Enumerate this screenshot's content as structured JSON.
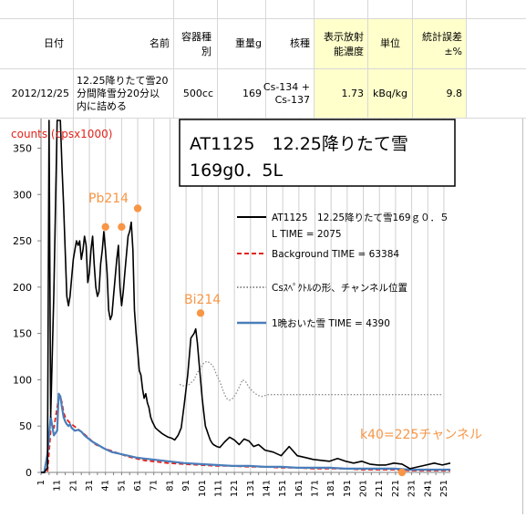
{
  "table": {
    "headers": [
      "日付",
      "名前",
      "容器種別",
      "重量g",
      "核種",
      "表示放射能濃度",
      "単位",
      "統計誤差±%"
    ],
    "row": {
      "date": "2012/12/25",
      "name": "12.25降りたて雪20分間降雪分20分以内に詰める",
      "container": "500cc",
      "weight": "169",
      "nuclide": "Cs-134 + Cs-137",
      "concentration": "1.73",
      "unit": "kBq/kg",
      "error": "9.8"
    },
    "highlight_color": "#ffffcc"
  },
  "chart_data": {
    "type": "line",
    "ylabel": "counts (cpsx1000)",
    "ylim": [
      0,
      380
    ],
    "yticks": [
      0,
      50,
      100,
      150,
      200,
      250,
      300,
      350
    ],
    "xlim": [
      1,
      255
    ],
    "xticks": [
      1,
      11,
      21,
      31,
      41,
      51,
      61,
      71,
      81,
      91,
      101,
      111,
      121,
      131,
      141,
      151,
      161,
      171,
      181,
      191,
      201,
      211,
      221,
      231,
      241,
      251
    ],
    "title_box": [
      "AT1125　12.25降りたて雪",
      "169g0．5L"
    ],
    "series": [
      {
        "name": "AT1125　12.25降りたて雪169ｇ０．５L TIME = 2075",
        "color": "#000000",
        "style": "solid",
        "x": [
          1,
          3,
          5,
          6,
          7,
          9,
          11,
          12,
          13,
          14,
          15,
          16,
          17,
          18,
          19,
          20,
          21,
          22,
          23,
          24,
          25,
          26,
          27,
          28,
          29,
          30,
          31,
          32,
          33,
          34,
          35,
          36,
          37,
          38,
          39,
          40,
          41,
          42,
          43,
          44,
          45,
          46,
          47,
          48,
          49,
          50,
          51,
          52,
          53,
          54,
          55,
          56,
          57,
          58,
          59,
          60,
          61,
          62,
          63,
          64,
          65,
          66,
          67,
          68,
          69,
          70,
          72,
          74,
          76,
          78,
          80,
          82,
          84,
          86,
          88,
          90,
          92,
          94,
          96,
          97,
          98,
          99,
          100,
          101,
          102,
          103,
          104,
          105,
          106,
          107,
          108,
          110,
          112,
          115,
          118,
          121,
          124,
          127,
          130,
          133,
          136,
          140,
          145,
          150,
          155,
          160,
          165,
          170,
          175,
          180,
          185,
          190,
          195,
          200,
          205,
          210,
          215,
          220,
          225,
          230,
          235,
          240,
          245,
          250,
          255
        ],
        "values": [
          0,
          0,
          5,
          380,
          60,
          195,
          380,
          380,
          380,
          330,
          290,
          240,
          190,
          180,
          190,
          210,
          230,
          240,
          250,
          245,
          250,
          230,
          240,
          255,
          245,
          205,
          215,
          240,
          255,
          225,
          200,
          190,
          195,
          225,
          240,
          260,
          240,
          215,
          175,
          165,
          170,
          190,
          210,
          230,
          245,
          200,
          180,
          195,
          215,
          235,
          255,
          260,
          270,
          240,
          175,
          150,
          130,
          110,
          105,
          90,
          80,
          85,
          75,
          70,
          60,
          55,
          48,
          45,
          42,
          40,
          38,
          37,
          35,
          40,
          48,
          75,
          105,
          145,
          150,
          155,
          140,
          120,
          100,
          80,
          65,
          50,
          45,
          40,
          35,
          32,
          30,
          28,
          27,
          33,
          38,
          35,
          30,
          36,
          34,
          28,
          30,
          24,
          22,
          18,
          28,
          18,
          16,
          14,
          13,
          12,
          15,
          12,
          10,
          12,
          9,
          8,
          8,
          10,
          9,
          4,
          6,
          8,
          10,
          8,
          10
        ]
      },
      {
        "name": "Background  TIME = 63384",
        "color": "#e2231a",
        "style": "dashed",
        "x": [
          1,
          3,
          5,
          7,
          9,
          11,
          12,
          13,
          14,
          15,
          16,
          18,
          20,
          23,
          26,
          30,
          35,
          40,
          45,
          50,
          55,
          60,
          65,
          70,
          80,
          90,
          100,
          110,
          120,
          130,
          140,
          150,
          160,
          170,
          180,
          190,
          200,
          210,
          220,
          230,
          240,
          250,
          255
        ],
        "values": [
          0,
          0,
          0,
          45,
          48,
          70,
          80,
          82,
          75,
          65,
          60,
          55,
          52,
          48,
          44,
          38,
          30,
          26,
          23,
          20,
          17,
          15,
          13,
          12,
          10,
          9,
          8,
          7,
          7,
          6,
          6,
          5,
          5,
          4,
          4,
          4,
          3,
          3,
          3,
          2,
          2,
          2,
          2
        ]
      },
      {
        "name": "Csｽﾍﾟｸﾄﾙの形、チャンネル位置",
        "color": "#8c8c8c",
        "style": "dotted",
        "x": [
          87,
          90,
          93,
          96,
          98,
          100,
          102,
          104,
          106,
          108,
          110,
          112,
          114,
          116,
          118,
          120,
          122,
          124,
          126,
          128,
          130,
          132,
          134,
          136,
          138,
          140,
          142,
          145,
          150,
          160,
          170,
          180,
          190,
          200,
          210,
          220,
          230,
          240,
          250
        ],
        "values": [
          95,
          93,
          95,
          100,
          108,
          112,
          118,
          120,
          118,
          114,
          105,
          98,
          88,
          80,
          78,
          80,
          85,
          92,
          100,
          98,
          92,
          88,
          85,
          83,
          82,
          83,
          84,
          84,
          84,
          84,
          84,
          84,
          84,
          84,
          84,
          84,
          84,
          84,
          84
        ]
      },
      {
        "name": "1晩おいた雪 TIME = 4390",
        "color": "#4a7ebb",
        "style": "solid",
        "x": [
          1,
          3,
          5,
          7,
          9,
          11,
          12,
          13,
          14,
          15,
          16,
          17,
          18,
          19,
          20,
          22,
          24,
          26,
          28,
          30,
          33,
          36,
          40,
          45,
          50,
          55,
          60,
          65,
          70,
          75,
          80,
          90,
          100,
          110,
          120,
          130,
          140,
          150,
          160,
          170,
          180,
          190,
          200,
          210,
          220,
          230,
          240,
          250,
          255
        ],
        "values": [
          0,
          0,
          20,
          60,
          40,
          45,
          85,
          82,
          70,
          60,
          55,
          52,
          50,
          52,
          48,
          45,
          46,
          44,
          40,
          37,
          33,
          30,
          26,
          22,
          20,
          18,
          16,
          15,
          14,
          13,
          12,
          10,
          9,
          8,
          7,
          7,
          6,
          6,
          5,
          5,
          5,
          4,
          4,
          4,
          4,
          3,
          3,
          3,
          3
        ]
      }
    ],
    "annotations": [
      {
        "text": "Pb214",
        "color": "#f79646"
      },
      {
        "text": "Bi214",
        "color": "#f79646"
      },
      {
        "text": "k40=225チャンネル",
        "color": "#f79646"
      }
    ],
    "markers": [
      {
        "x": 41,
        "y": 265
      },
      {
        "x": 51,
        "y": 265
      },
      {
        "x": 61,
        "y": 285
      },
      {
        "x": 100,
        "y": 172
      },
      {
        "x": 225,
        "y": 0
      }
    ],
    "marker_color": "#f79646",
    "grid": "vertical"
  }
}
